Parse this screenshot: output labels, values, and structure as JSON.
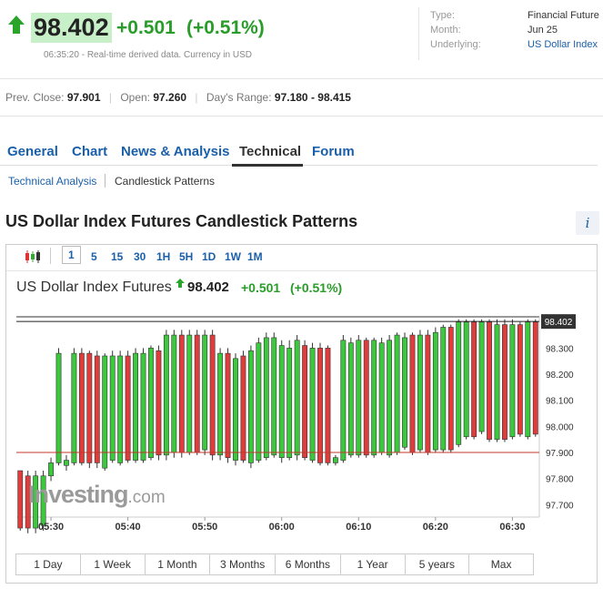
{
  "quote": {
    "price": "98.402",
    "change": "+0.501",
    "change_pct": "(+0.51%)",
    "timestamp_note": "06:35:20 - Real-time derived data. Currency in USD"
  },
  "details": [
    {
      "key": "Type:",
      "value": "Financial Future",
      "link": false
    },
    {
      "key": "Month:",
      "value": "Jun 25",
      "link": false
    },
    {
      "key": "Underlying:",
      "value": "US Dollar Index",
      "link": true
    }
  ],
  "stats": {
    "prev_close_label": "Prev. Close:",
    "prev_close": "97.901",
    "open_label": "Open:",
    "open": "97.260",
    "range_label": "Day's Range:",
    "range": "97.180 - 98.415"
  },
  "tabs": [
    "General",
    "Chart",
    "News & Analysis",
    "Technical",
    "Forum"
  ],
  "active_tab": "Technical",
  "subtabs": [
    "Technical Analysis",
    "Candlestick Patterns"
  ],
  "section_title": "US Dollar Index Futures Candlestick Patterns",
  "info_label": "i",
  "chart_toolbar": {
    "timeframes": [
      "1",
      "5",
      "15",
      "30",
      "1H",
      "5H",
      "1D",
      "1W",
      "1M"
    ],
    "active": "1"
  },
  "chart_header": {
    "title": "US Dollar Index Futures",
    "price": "98.402",
    "change": "+0.501",
    "change_pct": "(+0.51%)"
  },
  "watermark": {
    "brand": "Investing",
    "suffix": ".com"
  },
  "range_buttons": [
    "1 Day",
    "1 Week",
    "1 Month",
    "3 Months",
    "6 Months",
    "1 Year",
    "5 years",
    "Max"
  ],
  "colors": {
    "up": "#3cc83c",
    "down": "#e03c3c",
    "accent": "#1a5faa",
    "change": "#2a9c2a"
  },
  "chart_data": {
    "type": "candlestick",
    "x_tick_labels": [
      "05:30",
      "05:40",
      "05:50",
      "06:00",
      "06:10",
      "06:20",
      "06:30"
    ],
    "x_ticks_index": [
      4,
      14,
      24,
      34,
      44,
      54,
      64
    ],
    "y_tick_labels": [
      "98.300",
      "98.200",
      "98.100",
      "98.000",
      "97.900",
      "97.800",
      "97.700"
    ],
    "y_ticks": [
      98.3,
      98.2,
      98.1,
      98.0,
      97.9,
      97.8,
      97.7
    ],
    "ylim": [
      97.68,
      98.42
    ],
    "last_price_label": "98.402",
    "last_price": 98.402,
    "prev_close_line": 97.9,
    "candles": [
      [
        97.83,
        97.61,
        97.82,
        97.6
      ],
      [
        97.81,
        97.61,
        97.83,
        97.59
      ],
      [
        97.61,
        97.81,
        97.83,
        97.59
      ],
      [
        97.62,
        97.81,
        97.83,
        97.6
      ],
      [
        97.81,
        97.86,
        97.88,
        97.79
      ],
      [
        97.86,
        98.28,
        98.3,
        97.85
      ],
      [
        97.85,
        97.87,
        97.89,
        97.83
      ],
      [
        97.86,
        98.28,
        98.3,
        97.85
      ],
      [
        98.28,
        97.86,
        98.3,
        97.85
      ],
      [
        98.28,
        97.86,
        98.29,
        97.84
      ],
      [
        98.27,
        97.86,
        98.29,
        97.84
      ],
      [
        97.84,
        98.27,
        98.28,
        97.83
      ],
      [
        97.87,
        98.27,
        98.29,
        97.86
      ],
      [
        97.86,
        98.27,
        98.29,
        97.85
      ],
      [
        98.27,
        97.87,
        98.29,
        97.86
      ],
      [
        97.87,
        98.28,
        98.3,
        97.86
      ],
      [
        97.87,
        98.28,
        98.3,
        97.86
      ],
      [
        97.88,
        98.3,
        98.31,
        97.87
      ],
      [
        98.29,
        97.89,
        98.31,
        97.87
      ],
      [
        97.89,
        98.35,
        98.37,
        97.87
      ],
      [
        97.9,
        98.35,
        98.37,
        97.88
      ],
      [
        98.35,
        97.9,
        98.37,
        97.88
      ],
      [
        97.9,
        98.35,
        98.37,
        97.89
      ],
      [
        98.35,
        97.9,
        98.37,
        97.89
      ],
      [
        97.91,
        98.35,
        98.37,
        97.89
      ],
      [
        98.35,
        97.89,
        98.37,
        97.87
      ],
      [
        97.89,
        98.28,
        98.3,
        97.87
      ],
      [
        98.28,
        97.88,
        98.3,
        97.86
      ],
      [
        97.87,
        98.26,
        98.28,
        97.85
      ],
      [
        98.27,
        97.87,
        98.29,
        97.86
      ],
      [
        97.86,
        98.29,
        98.31,
        97.84
      ],
      [
        97.87,
        98.32,
        98.34,
        97.86
      ],
      [
        97.88,
        98.34,
        98.36,
        97.87
      ],
      [
        97.89,
        98.34,
        98.36,
        97.88
      ],
      [
        97.88,
        98.31,
        98.33,
        97.86
      ],
      [
        97.88,
        98.3,
        98.33,
        97.87
      ],
      [
        97.89,
        98.33,
        98.35,
        97.87
      ],
      [
        98.31,
        97.88,
        98.33,
        97.87
      ],
      [
        97.87,
        98.3,
        98.32,
        97.86
      ],
      [
        98.3,
        97.86,
        98.32,
        97.85
      ],
      [
        98.3,
        97.86,
        98.31,
        97.85
      ],
      [
        97.86,
        97.88,
        97.89,
        97.85
      ],
      [
        97.87,
        98.33,
        98.35,
        97.86
      ],
      [
        97.89,
        98.32,
        98.34,
        97.88
      ],
      [
        97.89,
        98.33,
        98.35,
        97.88
      ],
      [
        98.33,
        97.89,
        98.34,
        97.88
      ],
      [
        97.89,
        98.33,
        98.34,
        97.88
      ],
      [
        97.9,
        98.32,
        98.34,
        97.89
      ],
      [
        97.89,
        98.33,
        98.35,
        97.88
      ],
      [
        97.9,
        98.35,
        98.36,
        97.89
      ],
      [
        97.92,
        98.34,
        98.36,
        97.91
      ],
      [
        98.35,
        97.9,
        98.36,
        97.89
      ],
      [
        97.91,
        98.35,
        98.37,
        97.9
      ],
      [
        98.35,
        97.9,
        98.37,
        97.89
      ],
      [
        97.91,
        98.36,
        98.38,
        97.9
      ],
      [
        97.91,
        98.38,
        98.39,
        97.9
      ],
      [
        98.38,
        97.91,
        98.39,
        97.9
      ],
      [
        97.93,
        98.4,
        98.41,
        97.92
      ],
      [
        97.96,
        98.4,
        98.41,
        97.95
      ],
      [
        98.4,
        97.96,
        98.41,
        97.95
      ],
      [
        97.98,
        98.4,
        98.41,
        97.97
      ],
      [
        98.4,
        97.95,
        98.41,
        97.94
      ],
      [
        97.95,
        98.39,
        98.41,
        97.94
      ],
      [
        98.39,
        97.95,
        98.41,
        97.94
      ],
      [
        97.96,
        98.39,
        98.41,
        97.95
      ],
      [
        98.39,
        97.97,
        98.4,
        97.96
      ],
      [
        97.96,
        98.4,
        98.41,
        97.95
      ],
      [
        98.4,
        97.97,
        98.41,
        97.96
      ]
    ]
  }
}
